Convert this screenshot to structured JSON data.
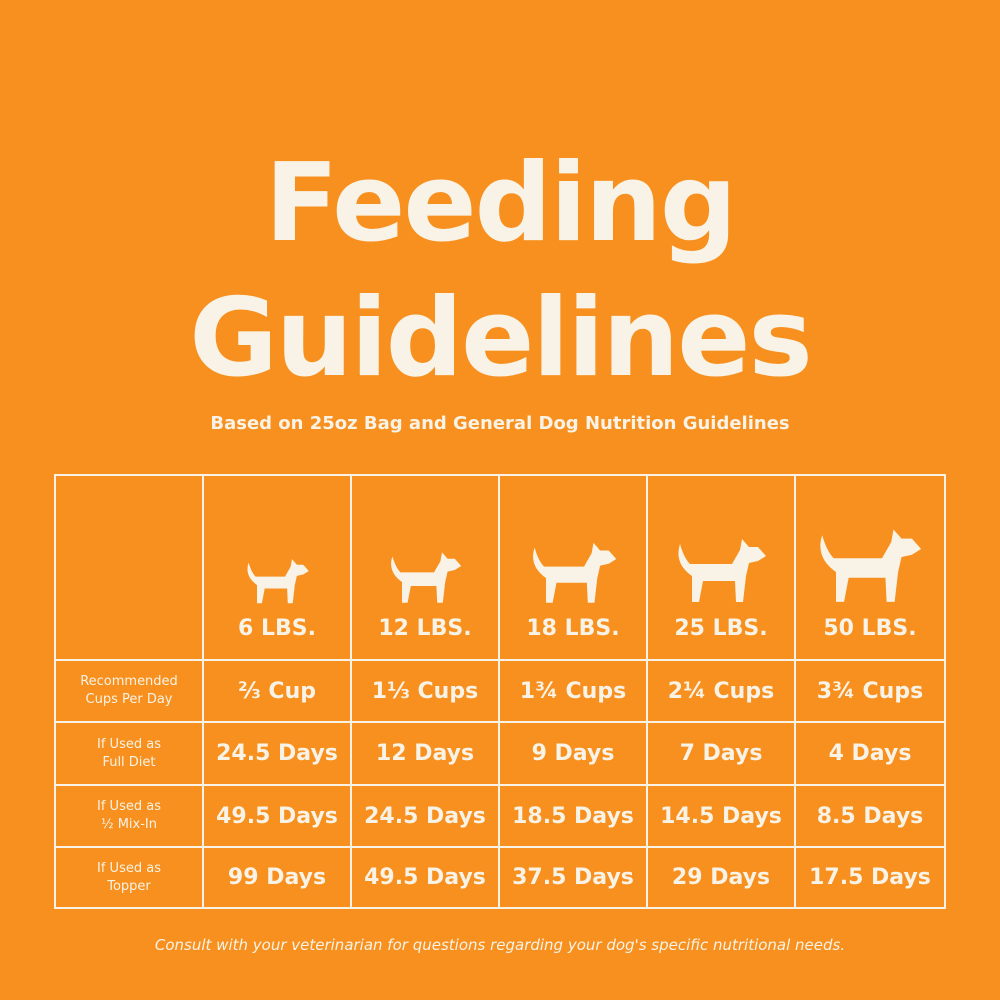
{
  "title_lines": [
    "Feeding",
    "Guidelines"
  ],
  "subtitle": "Based on 25oz Bag and General Dog Nutrition Guidelines",
  "table": {
    "columns": [
      "6 LBS.",
      "12 LBS.",
      "18 LBS.",
      "25 LBS.",
      "50 LBS."
    ],
    "rows": [
      {
        "label": [
          "Recommended",
          "Cups Per Day"
        ],
        "cells": [
          "⅔ Cup",
          "1⅓ Cups",
          "1¾ Cups",
          "2¼ Cups",
          "3¾ Cups"
        ]
      },
      {
        "label": [
          "If Used as",
          "Full Diet"
        ],
        "cells": [
          "24.5 Days",
          "12 Days",
          "9 Days",
          "7 Days",
          "4 Days"
        ]
      },
      {
        "label": [
          "If Used as",
          "½ Mix-In"
        ],
        "cells": [
          "49.5 Days",
          "24.5 Days",
          "18.5 Days",
          "14.5 Days",
          "8.5 Days"
        ]
      },
      {
        "label": [
          "If Used as",
          "Topper"
        ],
        "cells": [
          "99 Days",
          "49.5 Days",
          "37.5 Days",
          "29 Days",
          "17.5 Days"
        ]
      }
    ]
  },
  "footnote": "Consult with your veterinarian for questions regarding your dog's specific nutritional needs."
}
